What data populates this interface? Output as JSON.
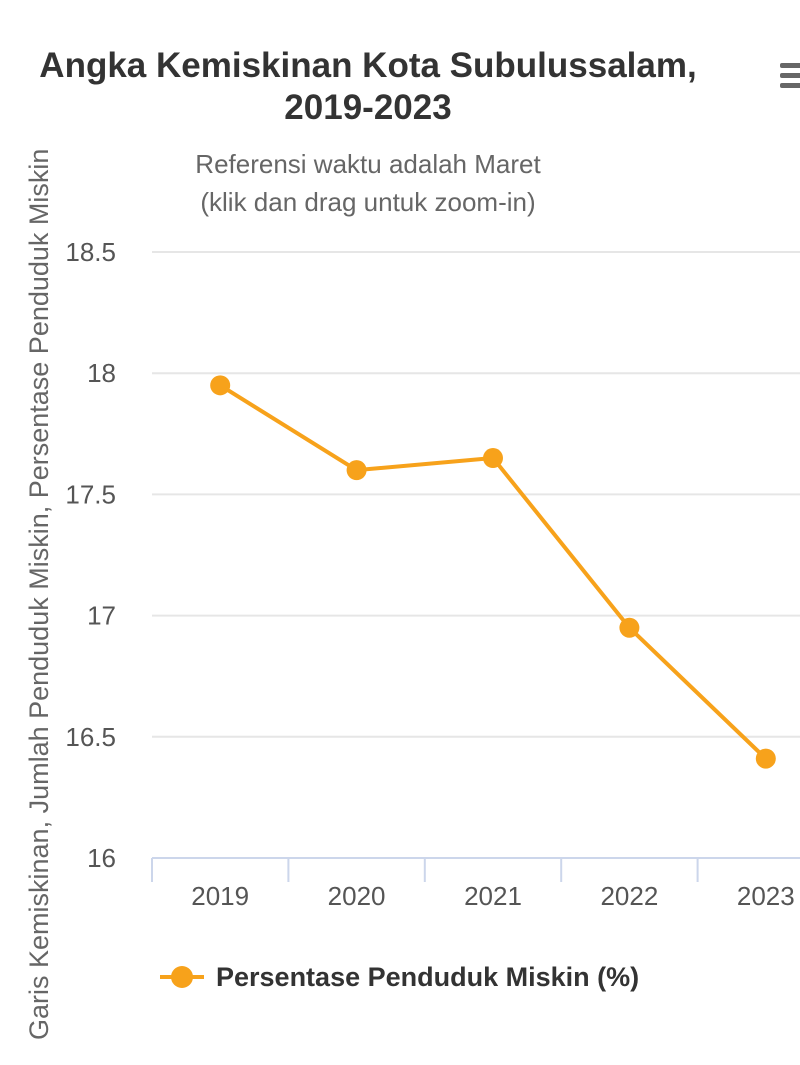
{
  "header": {
    "title_line1": "Angka Kemiskinan Kota Subulussalam,",
    "title_line2": "2019-2023",
    "subtitle_line1": "Referensi waktu adalah Maret",
    "subtitle_line2": "(klik dan drag untuk zoom-in)",
    "menu_icon": "hamburger-menu-icon"
  },
  "chart_data": {
    "type": "line",
    "title": "Angka Kemiskinan Kota Subulussalam, 2019-2023",
    "subtitle": "Referensi waktu adalah Maret (klik dan drag untuk zoom-in)",
    "xlabel": "",
    "ylabel": "Garis Kemiskinan, Jumlah Penduduk Miskin, Persentase Penduduk Miskin",
    "categories": [
      "2019",
      "2020",
      "2021",
      "2022",
      "2023"
    ],
    "y_ticks": [
      "16",
      "16.5",
      "17",
      "17.5",
      "18",
      "18.5"
    ],
    "ylim": [
      16,
      18.5
    ],
    "grid": true,
    "legend_position": "bottom-left",
    "series": [
      {
        "name": "Persentase Penduduk Miskin (%)",
        "color": "#f7a21b",
        "values": [
          17.95,
          17.6,
          17.65,
          16.95,
          16.41
        ]
      }
    ]
  }
}
